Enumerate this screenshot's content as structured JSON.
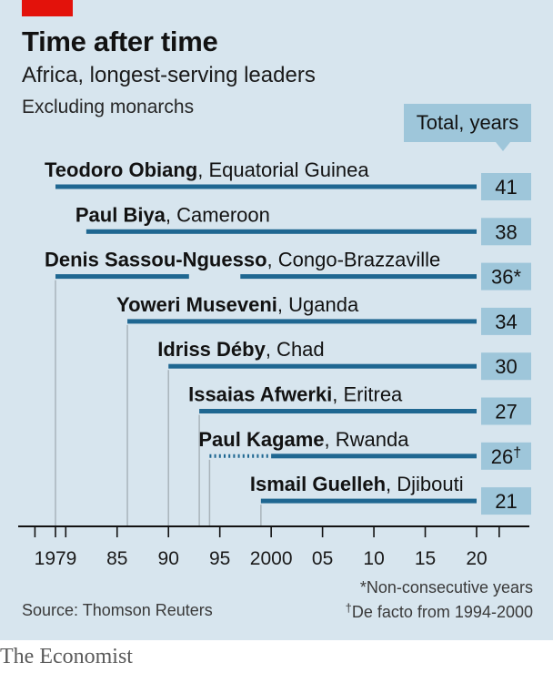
{
  "header": {
    "title": "Time after time",
    "subtitle": "Africa, longest-serving leaders",
    "note": "Excluding monarchs",
    "total_label": "Total, years"
  },
  "footer": {
    "footnote_nonconsecutive": "*Non-consecutive years",
    "footnote_defacto": "De facto from 1994-2000",
    "footnote_defacto_marker": "†",
    "source": "Source: Thomson Reuters",
    "brand": "The Economist"
  },
  "colors": {
    "background": "#d7e5ee",
    "bar": "#1f6791",
    "total_box": "#9ec6da",
    "accent_red": "#e3120b"
  },
  "chart_data": {
    "type": "bar",
    "orientation": "horizontal-range",
    "xlim": [
      1977,
      2020
    ],
    "x_ticks": [
      1979,
      1985,
      1990,
      1995,
      2000,
      2005,
      2010,
      2015,
      2020
    ],
    "x_tick_labels": [
      "1979",
      "85",
      "90",
      "95",
      "2000",
      "05",
      "10",
      "15",
      "20"
    ],
    "series": [
      {
        "name": "Teodoro Obiang",
        "country": "Equatorial Guinea",
        "total": "41",
        "segments": [
          {
            "start": 1979,
            "end": 2020,
            "style": "solid"
          }
        ]
      },
      {
        "name": "Paul Biya",
        "country": "Cameroon",
        "total": "38",
        "segments": [
          {
            "start": 1982,
            "end": 2020,
            "style": "solid"
          }
        ]
      },
      {
        "name": "Denis Sassou-Nguesso",
        "country": "Congo-Brazzaville",
        "total": "36*",
        "segments": [
          {
            "start": 1979,
            "end": 1992,
            "style": "solid"
          },
          {
            "start": 1997,
            "end": 2020,
            "style": "solid"
          }
        ]
      },
      {
        "name": "Yoweri Museveni",
        "country": "Uganda",
        "total": "34",
        "segments": [
          {
            "start": 1986,
            "end": 2020,
            "style": "solid"
          }
        ]
      },
      {
        "name": "Idriss Déby",
        "country": "Chad",
        "total": "30",
        "segments": [
          {
            "start": 1990,
            "end": 2020,
            "style": "solid"
          }
        ]
      },
      {
        "name": "Issaias Afwerki",
        "country": "Eritrea",
        "total": "27",
        "segments": [
          {
            "start": 1993,
            "end": 2020,
            "style": "solid"
          }
        ]
      },
      {
        "name": "Paul Kagame",
        "country": "Rwanda",
        "total": "26",
        "total_marker": "†",
        "segments": [
          {
            "start": 1994,
            "end": 2000,
            "style": "dotted"
          },
          {
            "start": 2000,
            "end": 2020,
            "style": "solid"
          }
        ]
      },
      {
        "name": "Ismail Guelleh",
        "country": "Djibouti",
        "total": "21",
        "segments": [
          {
            "start": 1999,
            "end": 2020,
            "style": "solid"
          }
        ]
      }
    ],
    "annotations": [
      "*Non-consecutive years",
      "†De facto from 1994-2000"
    ]
  }
}
